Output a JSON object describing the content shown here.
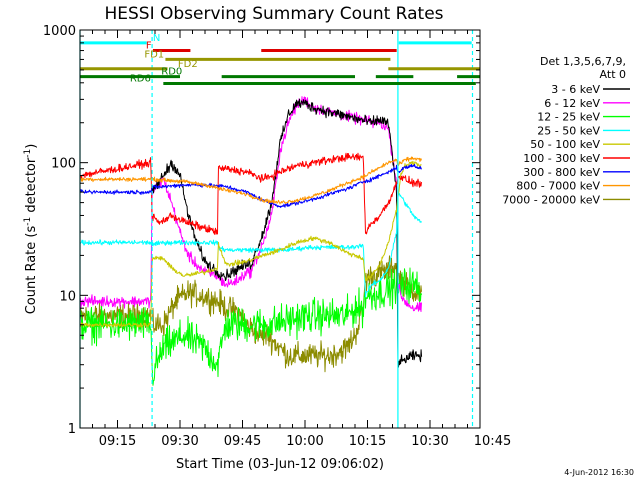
{
  "chart_data": {
    "type": "line",
    "title": "HESSI Observing Summary Count Rates",
    "xlabel": "Start Time (03-Jun-12 09:06:02)",
    "ylabel_main": "Count Rate (s",
    "ylabel_sup1": "-1",
    "ylabel_mid": " detector",
    "ylabel_sup2": "-1",
    "ylabel_end": ")",
    "timestamp": "4-Jun-2012 16:30",
    "y_scale": "log",
    "ylim": [
      1,
      1000
    ],
    "xlim_minutes": [
      0,
      96
    ],
    "y_ticks": [
      {
        "value": 1,
        "label": "1"
      },
      {
        "value": 10,
        "label": "10"
      },
      {
        "value": 100,
        "label": "100"
      },
      {
        "value": 1000,
        "label": "1000"
      }
    ],
    "x_ticks": [
      {
        "minute": 9,
        "label": "09:15"
      },
      {
        "minute": 24,
        "label": "09:30"
      },
      {
        "minute": 39,
        "label": "09:45"
      },
      {
        "minute": 54,
        "label": "10:00"
      },
      {
        "minute": 69,
        "label": "10:15"
      },
      {
        "minute": 84,
        "label": "10:30"
      },
      {
        "minute": 99,
        "label": "10:45"
      }
    ],
    "legend": {
      "placement": "right",
      "header1": "Det 1,3,5,6,7,9,",
      "header2": "Att 0",
      "entries": [
        {
          "label": "3 - 6 keV",
          "color": "#000000"
        },
        {
          "label": "6 - 12 keV",
          "color": "#ff00ff"
        },
        {
          "label": "12 - 25 keV",
          "color": "#00ff00"
        },
        {
          "label": "25 - 50 keV",
          "color": "#00ffff"
        },
        {
          "label": "50 - 100 keV",
          "color": "#c8c800"
        },
        {
          "label": "100 - 300 keV",
          "color": "#ff0000"
        },
        {
          "label": "300 - 800 keV",
          "color": "#0000ff"
        },
        {
          "label": "800 - 7000 keV",
          "color": "#ff9600"
        },
        {
          "label": "7000 - 20000 keV",
          "color": "#8c8c00"
        }
      ]
    },
    "flag_bars": [
      {
        "label": "N",
        "color": "#00ffff",
        "y": 800,
        "segments": [
          [
            0,
            16
          ],
          [
            76.5,
            94
          ]
        ]
      },
      {
        "label": "F",
        "color": "#dd0000",
        "y": 700,
        "segments": [
          [
            17.5,
            26.5
          ],
          [
            43.5,
            76
          ]
        ]
      },
      {
        "label": "FD1",
        "color": "#969600",
        "y": 600,
        "segments": [
          [
            20.5,
            74.5
          ]
        ]
      },
      {
        "label": "FD2",
        "color": "#969600",
        "y": 510,
        "segments": [
          [
            0,
            21
          ],
          [
            74,
            96
          ]
        ]
      },
      {
        "label": "RD0",
        "color": "#007800",
        "y": 445,
        "segments": [
          [
            0,
            24
          ],
          [
            34,
            66
          ],
          [
            71,
            80
          ],
          [
            90.5,
            96
          ]
        ]
      },
      {
        "label": "RD6",
        "color": "#007800",
        "y": 395,
        "segments": [
          [
            20,
            95
          ]
        ]
      }
    ],
    "vlines": [
      {
        "minute": 0,
        "style": "solid",
        "color": "#00ffff"
      },
      {
        "minute": 17.3,
        "style": "dashed",
        "color": "#00ffff"
      },
      {
        "minute": 76.3,
        "style": "solid",
        "color": "#00ffff"
      },
      {
        "minute": 94.2,
        "style": "dashed",
        "color": "#00ffff"
      }
    ],
    "series": [
      {
        "color": "#8c8c00",
        "noise": 0.16,
        "x": [
          0,
          17,
          17.3,
          20,
          23,
          26,
          29,
          33,
          35,
          38,
          40,
          43,
          45,
          48,
          50,
          55,
          60,
          64,
          66,
          68,
          68.5,
          70,
          73,
          75,
          76,
          76.3,
          78,
          80,
          82
        ],
        "y": [
          7,
          7,
          6,
          6,
          9,
          10.5,
          10,
          9,
          8,
          7.5,
          6,
          5,
          5,
          4,
          3.5,
          3.5,
          3.5,
          4,
          5,
          8,
          13,
          14,
          15,
          16,
          17,
          14,
          12,
          11,
          10
        ]
      },
      {
        "color": "#00ff00",
        "noise": 0.22,
        "x": [
          0,
          17,
          17.3,
          20,
          25,
          30,
          33,
          35,
          40,
          45,
          50,
          55,
          60,
          64,
          66,
          68,
          68.5,
          70,
          72,
          74,
          76,
          76.3,
          78,
          80,
          82
        ],
        "y": [
          6,
          6,
          2.5,
          4,
          5,
          4,
          3,
          6,
          6,
          6,
          6.5,
          7,
          7,
          7,
          8,
          8,
          10,
          10,
          10.5,
          11,
          12,
          11,
          12,
          12,
          11
        ]
      },
      {
        "color": "#ff00ff",
        "noise": 0.07,
        "x": [
          0,
          17,
          17.3,
          20,
          22,
          24,
          26,
          28,
          30,
          33,
          35,
          38,
          40,
          41,
          44,
          46,
          48,
          50,
          52,
          54,
          56,
          60,
          65,
          70,
          72,
          74,
          76,
          76.3,
          77,
          78,
          80,
          82
        ],
        "y": [
          9,
          9,
          60,
          75,
          50,
          30,
          20,
          17,
          15,
          14,
          12,
          13,
          15,
          15,
          25,
          40,
          120,
          200,
          270,
          300,
          260,
          240,
          220,
          200,
          200,
          180,
          70,
          12,
          10,
          9,
          8,
          8
        ]
      },
      {
        "color": "#000000",
        "noise": 0.07,
        "x": [
          17.3,
          20,
          22,
          24,
          26,
          28,
          30,
          33,
          35,
          38,
          40,
          41,
          44,
          46,
          48,
          50,
          52,
          54,
          56,
          60,
          65,
          70,
          72,
          74,
          76,
          76.3,
          78,
          80,
          82
        ],
        "y": [
          60,
          80,
          100,
          80,
          40,
          25,
          18,
          15,
          14,
          16,
          17,
          17,
          30,
          50,
          140,
          230,
          280,
          280,
          260,
          240,
          220,
          200,
          210,
          200,
          60,
          3,
          3.3,
          3.5,
          3.5
        ]
      },
      {
        "color": "#00ffff",
        "noise": 0.03,
        "x": [
          0,
          17,
          17.3,
          20,
          25,
          30,
          33,
          33.2,
          35,
          40,
          45,
          50,
          55,
          60,
          65,
          68,
          68.5,
          70,
          72,
          74,
          76,
          76.3,
          78,
          80,
          82
        ],
        "y": [
          25,
          25,
          24,
          25,
          25,
          25,
          25,
          23,
          22,
          22,
          22,
          22,
          23,
          23,
          23,
          24,
          10,
          12,
          13,
          16,
          30,
          60,
          50,
          40,
          35
        ]
      },
      {
        "color": "#c8c800",
        "noise": 0.03,
        "x": [
          0,
          17,
          17.3,
          20,
          22,
          25,
          30,
          33,
          33.2,
          35,
          40,
          44,
          48,
          52,
          56,
          60,
          64,
          68,
          68.5,
          70,
          72,
          74,
          76,
          77,
          78,
          80,
          82
        ],
        "y": [
          6,
          6,
          19,
          19,
          16,
          14,
          15,
          16,
          25,
          17,
          18,
          20,
          22,
          25,
          27,
          25,
          21,
          19,
          13,
          14,
          17,
          25,
          45,
          80,
          95,
          100,
          95
        ]
      },
      {
        "color": "#ff0000",
        "noise": 0.05,
        "x": [
          0,
          17,
          17.3,
          19,
          22,
          25,
          30,
          33,
          33.2,
          35,
          40,
          44,
          48,
          52,
          56,
          60,
          64,
          68,
          68.5,
          70,
          72,
          74,
          76,
          76.3,
          78,
          80,
          82
        ],
        "y": [
          80,
          100,
          40,
          35,
          40,
          36,
          32,
          30,
          90,
          90,
          85,
          75,
          85,
          95,
          100,
          105,
          110,
          110,
          30,
          35,
          40,
          50,
          70,
          80,
          75,
          70,
          70
        ]
      },
      {
        "color": "#0000ff",
        "noise": 0.025,
        "x": [
          0,
          17,
          17.3,
          20,
          25,
          30,
          35,
          40,
          44,
          48,
          50,
          55,
          60,
          65,
          68,
          70,
          72,
          74,
          76,
          76.3,
          78,
          80,
          82
        ],
        "y": [
          60,
          60,
          65,
          66,
          68,
          68,
          66,
          60,
          52,
          47,
          48,
          52,
          58,
          65,
          72,
          75,
          80,
          85,
          92,
          85,
          92,
          95,
          90
        ]
      },
      {
        "color": "#ff9600",
        "noise": 0.025,
        "x": [
          0,
          17,
          17.3,
          20,
          25,
          30,
          35,
          40,
          44,
          48,
          52,
          56,
          60,
          64,
          68,
          70,
          72,
          74,
          76,
          76.3,
          78,
          80,
          82
        ],
        "y": [
          75,
          75,
          75,
          74,
          72,
          68,
          62,
          58,
          52,
          50,
          52,
          56,
          62,
          70,
          78,
          85,
          92,
          100,
          105,
          95,
          105,
          108,
          105
        ]
      }
    ]
  }
}
